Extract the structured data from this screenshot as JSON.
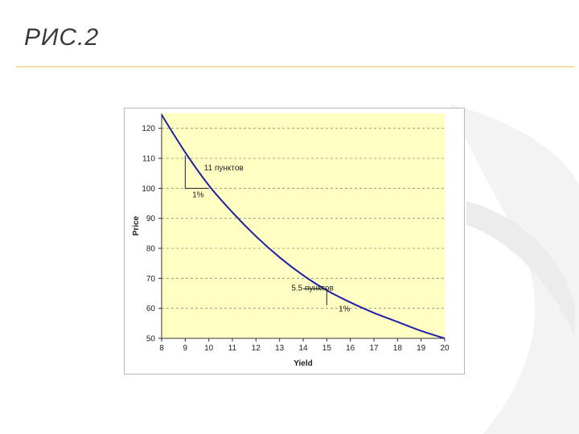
{
  "slide": {
    "title": "РИС.2",
    "background": "#ffffff",
    "accent": "#f0dfa8"
  },
  "chart_data": {
    "type": "line",
    "title": "",
    "xlabel": "Yield",
    "ylabel": "Price",
    "xlim": [
      8,
      20
    ],
    "ylim": [
      50,
      125
    ],
    "xticks": [
      8,
      9,
      10,
      11,
      12,
      13,
      14,
      15,
      16,
      17,
      18,
      19,
      20
    ],
    "yticks": [
      50,
      60,
      70,
      80,
      90,
      100,
      110,
      120
    ],
    "grid": "horizontal-dashed",
    "plot_background": "#ffffc4",
    "line_color": "#1f1fa8",
    "series": [
      {
        "x": [
          8,
          9,
          10,
          11,
          12,
          13,
          14,
          15,
          16,
          17,
          18,
          19,
          20
        ],
        "values": [
          124.5,
          112,
          101,
          92,
          84,
          77,
          71,
          66,
          62,
          58.5,
          55.5,
          52.5,
          50
        ]
      }
    ],
    "annotations": [
      {
        "text": "11 пунктов",
        "x": 9.8,
        "y": 106
      },
      {
        "text": "1%",
        "x": 9.3,
        "y": 97
      },
      {
        "text": "5.5 пунктов",
        "x": 13.5,
        "y": 66
      },
      {
        "text": "1%",
        "x": 15.5,
        "y": 59
      }
    ]
  }
}
